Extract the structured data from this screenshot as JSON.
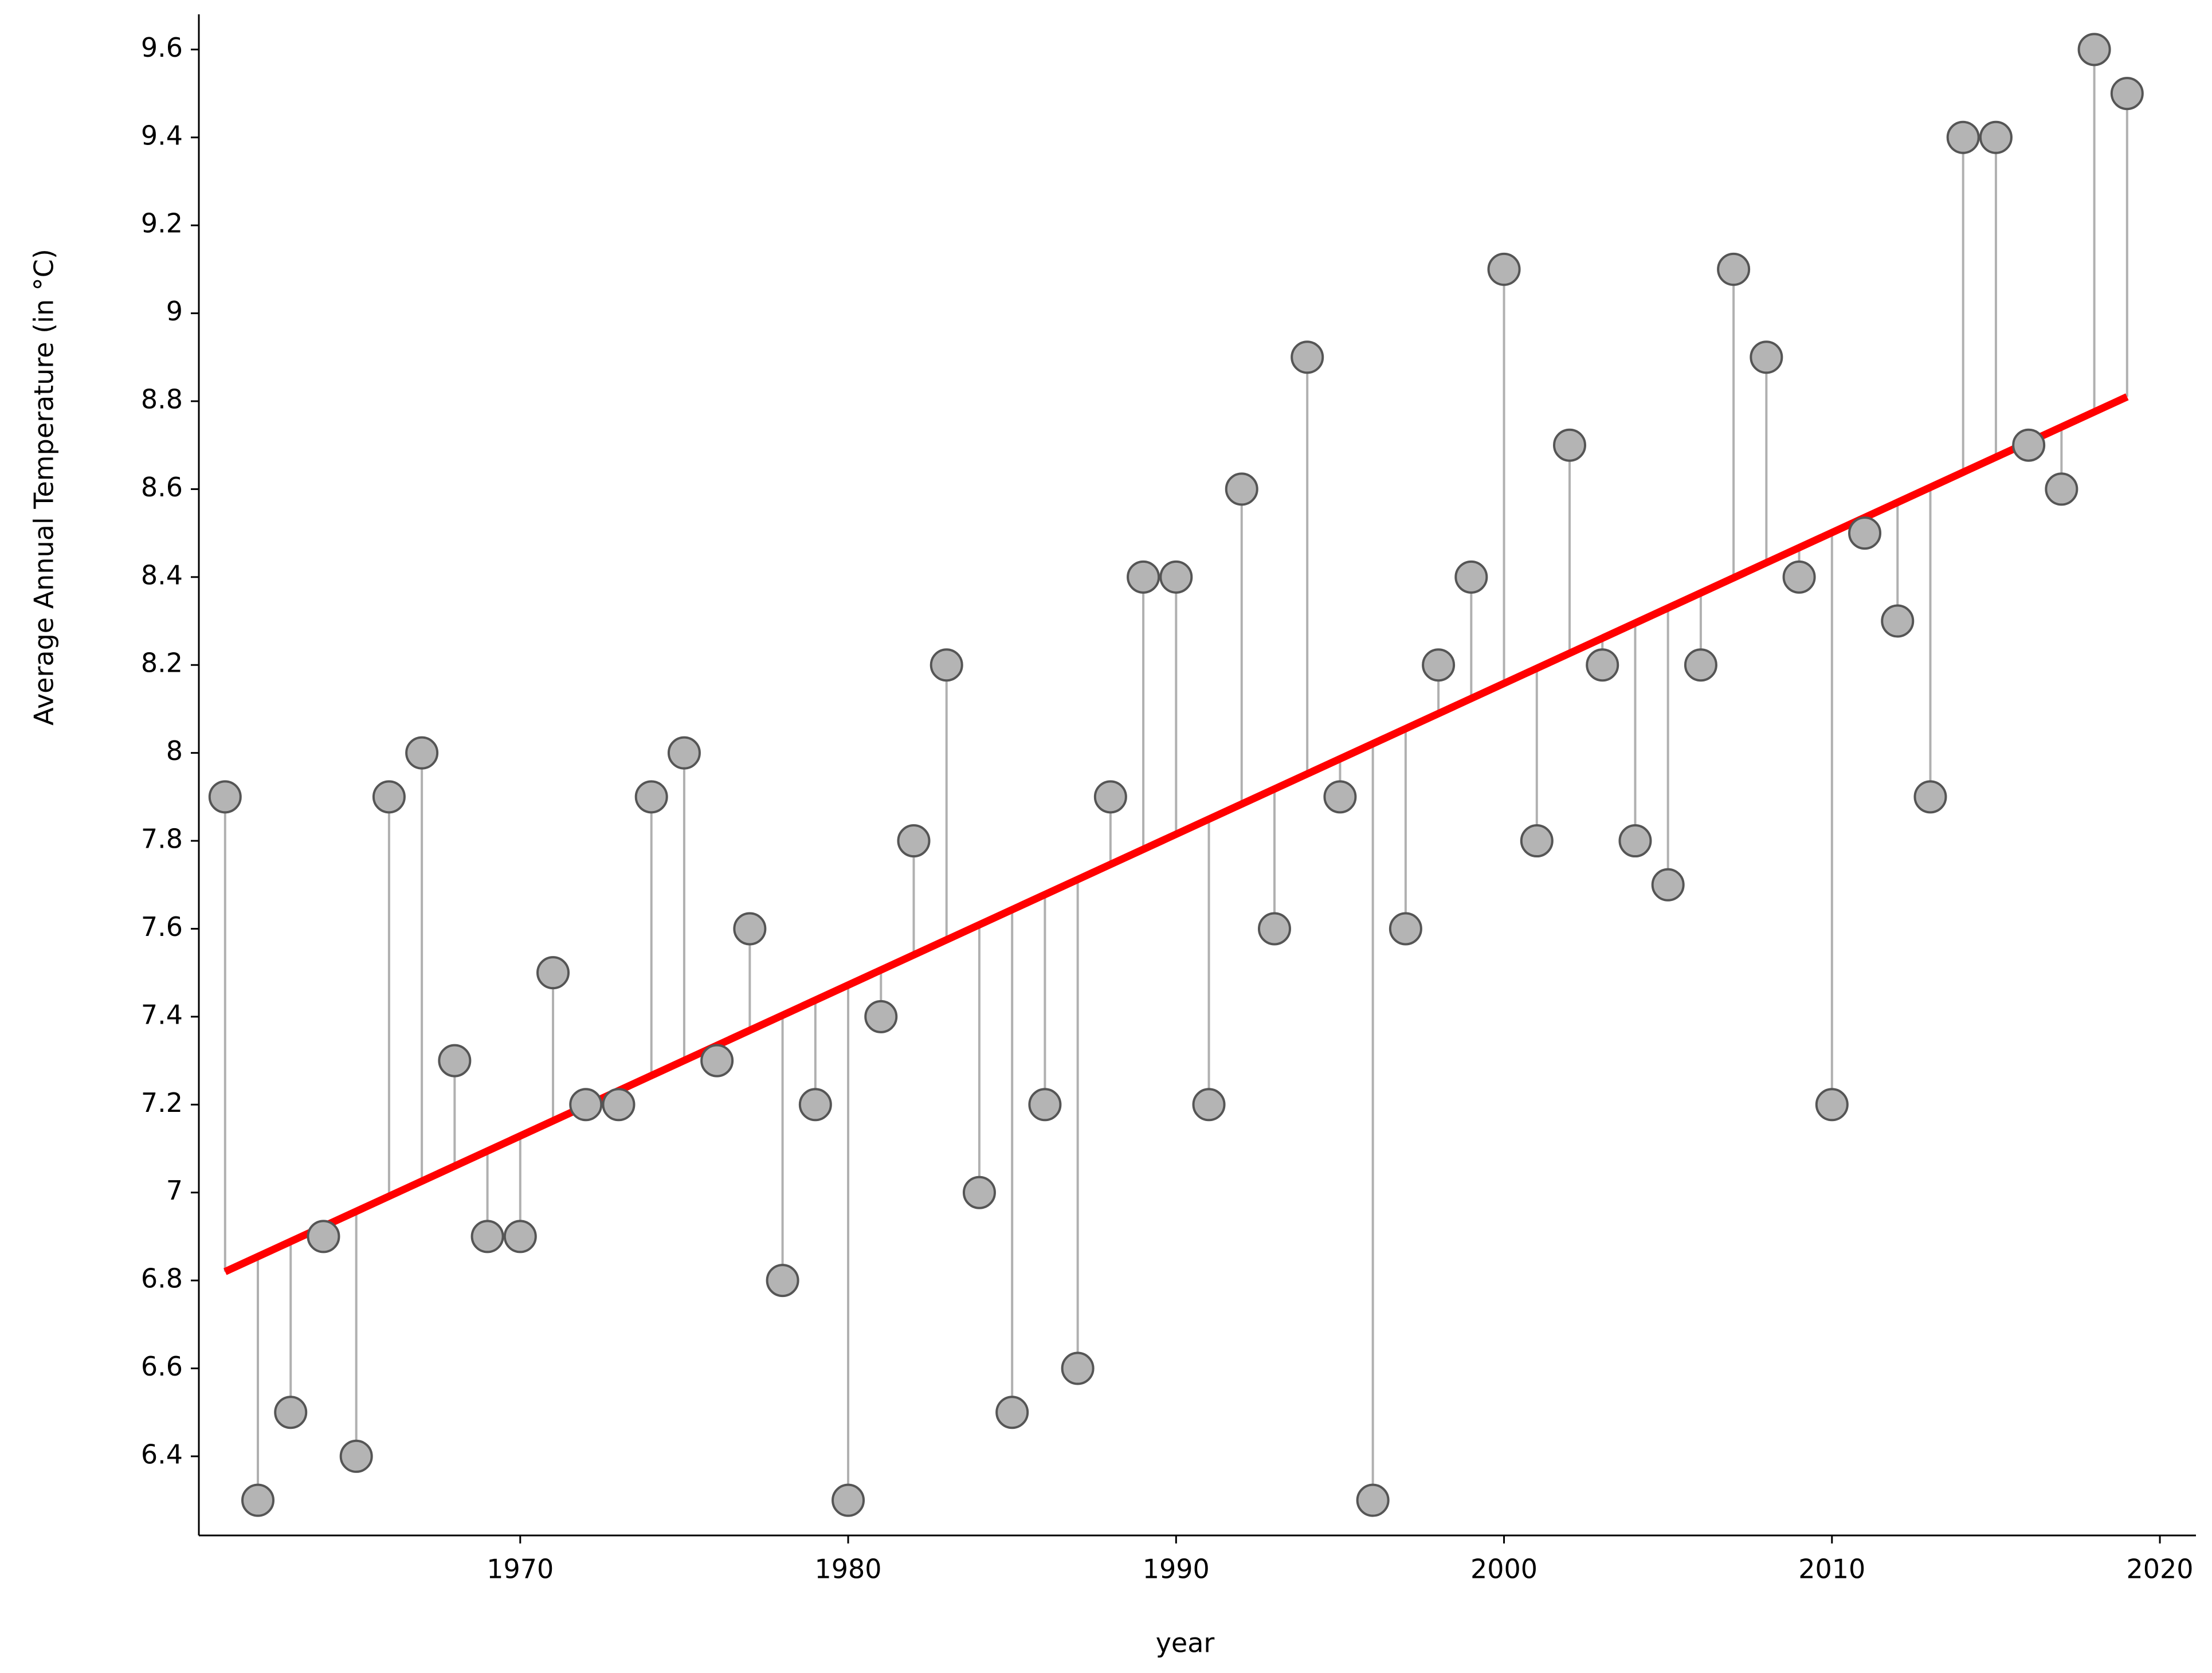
{
  "chart_data": {
    "type": "scatter",
    "xlabel": "year",
    "ylabel": "Average Annual Temperature (in °C)",
    "x": [
      1961,
      1962,
      1963,
      1964,
      1965,
      1966,
      1967,
      1968,
      1969,
      1970,
      1971,
      1972,
      1973,
      1974,
      1975,
      1976,
      1977,
      1978,
      1979,
      1980,
      1981,
      1982,
      1983,
      1984,
      1985,
      1986,
      1987,
      1988,
      1989,
      1990,
      1991,
      1992,
      1993,
      1994,
      1995,
      1996,
      1997,
      1998,
      1999,
      2000,
      2001,
      2002,
      2003,
      2004,
      2005,
      2006,
      2007,
      2008,
      2009,
      2010,
      2011,
      2012,
      2013,
      2014,
      2015,
      2016,
      2017,
      2018,
      2019
    ],
    "values": [
      7.9,
      6.3,
      6.5,
      6.9,
      6.4,
      7.9,
      8.0,
      7.3,
      6.9,
      6.9,
      7.5,
      7.2,
      7.2,
      7.9,
      8.0,
      7.3,
      7.6,
      6.8,
      7.2,
      6.3,
      7.4,
      7.8,
      8.2,
      7.0,
      6.5,
      7.2,
      6.6,
      7.9,
      8.4,
      8.4,
      7.2,
      8.6,
      7.6,
      8.9,
      7.9,
      6.3,
      7.6,
      8.2,
      8.4,
      9.1,
      7.8,
      8.7,
      8.2,
      7.8,
      7.7,
      8.2,
      9.1,
      8.9,
      8.4,
      7.2,
      8.5,
      8.3,
      7.9,
      9.4,
      9.4,
      8.7,
      8.6,
      9.6,
      9.5
    ],
    "marker_color": "#b4b4b4",
    "stem_color": "#b0b0b0",
    "trend": {
      "x": [
        1961,
        2019
      ],
      "values": [
        6.82,
        8.81
      ],
      "color": "#ff0000"
    },
    "xlim": [
      1960.2,
      2021.1
    ],
    "ylim": [
      6.22,
      9.68
    ],
    "xticks": [
      1970,
      1980,
      1990,
      2000,
      2010,
      2020
    ],
    "yticks": [
      6.4,
      6.6,
      6.8,
      7,
      7.2,
      7.4,
      7.6,
      7.8,
      8,
      8.2,
      8.4,
      8.6,
      8.8,
      9,
      9.2,
      9.4,
      9.6
    ],
    "grid": false
  }
}
